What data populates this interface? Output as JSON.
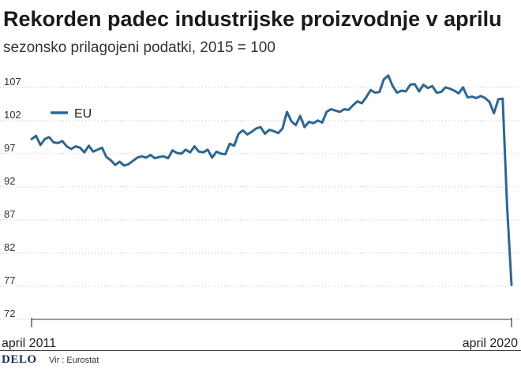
{
  "header": {
    "title": "Rekorden padec industrijske proizvodnje v aprilu",
    "subtitle": "sezonsko prilagojeni podatki, 2015 = 100"
  },
  "footer": {
    "brand": "DELO",
    "source": "Vir : Eurostat"
  },
  "colors": {
    "series": "#2e6690",
    "grid": "#bfbfbf",
    "axis": "#333333"
  },
  "chart_data": {
    "type": "line",
    "title": "Rekorden padec industrijske proizvodnje v aprilu",
    "subtitle": "sezonsko prilagojeni podatki, 2015 = 100",
    "xlabel": "",
    "ylabel": "",
    "x_start": "2011-04",
    "x_end": "2020-04",
    "x_tick_labels": [
      "april 2011",
      "april 2020"
    ],
    "y_ticks": [
      72,
      77,
      82,
      87,
      92,
      97,
      102,
      107
    ],
    "ylim": [
      72,
      109
    ],
    "grid": "horizontal dotted",
    "legend": {
      "placement": "top-left",
      "entries": [
        "EU"
      ]
    },
    "series": [
      {
        "name": "EU",
        "values": [
          99.2,
          99.7,
          98.3,
          99.2,
          99.5,
          98.7,
          98.6,
          98.9,
          98.1,
          97.7,
          98.1,
          97.9,
          97.2,
          98.2,
          97.3,
          97.6,
          97.9,
          96.5,
          96.0,
          95.3,
          95.8,
          95.2,
          95.4,
          95.9,
          96.4,
          96.6,
          96.4,
          96.8,
          96.3,
          96.5,
          96.6,
          96.3,
          97.5,
          97.1,
          97.0,
          97.6,
          97.2,
          98.1,
          97.3,
          97.2,
          97.6,
          96.4,
          97.3,
          97.0,
          96.9,
          98.5,
          98.2,
          100.0,
          100.5,
          99.9,
          100.3,
          100.8,
          101.0,
          100.0,
          100.6,
          100.4,
          100.1,
          100.8,
          103.3,
          101.9,
          101.3,
          102.7,
          101.0,
          101.8,
          101.6,
          102.0,
          101.7,
          103.3,
          103.7,
          103.5,
          103.3,
          103.7,
          103.6,
          104.3,
          104.9,
          104.6,
          105.5,
          106.6,
          106.2,
          106.3,
          108.2,
          108.8,
          107.2,
          106.2,
          106.5,
          106.4,
          107.4,
          107.5,
          106.4,
          107.4,
          106.9,
          107.2,
          106.2,
          106.3,
          107.0,
          106.8,
          106.5,
          106.1,
          107.0,
          105.5,
          105.6,
          105.4,
          105.7,
          105.4,
          104.8,
          103.1,
          105.2,
          105.3,
          89.0,
          77.2
        ]
      }
    ]
  }
}
